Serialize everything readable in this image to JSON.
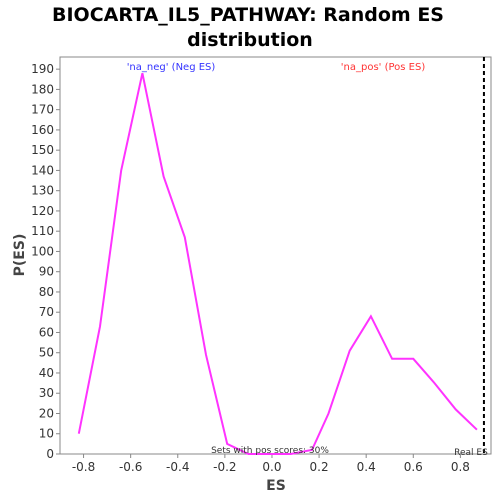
{
  "chart_data": {
    "type": "line",
    "title_line1": "BIOCARTA_IL5_PATHWAY: Random ES",
    "title_line2": "distribution",
    "xlabel": "ES",
    "ylabel": "P(ES)",
    "xlim": [
      -0.9,
      0.93
    ],
    "ylim": [
      0,
      196
    ],
    "xticks": [
      -0.8,
      -0.6,
      -0.4,
      -0.2,
      0.0,
      0.2,
      0.4,
      0.6,
      0.8
    ],
    "xtick_labels": [
      "-0.8",
      "-0.6",
      "-0.4",
      "-0.2",
      "0.0",
      "0.2",
      "0.4",
      "0.6",
      "0.8"
    ],
    "yticks": [
      0,
      10,
      20,
      30,
      40,
      50,
      60,
      70,
      80,
      90,
      100,
      110,
      120,
      130,
      140,
      150,
      160,
      170,
      180,
      190
    ],
    "ytick_labels": [
      "0",
      "10",
      "20",
      "30",
      "40",
      "50",
      "60",
      "70",
      "80",
      "90",
      "100",
      "110",
      "120",
      "130",
      "140",
      "150",
      "160",
      "170",
      "180",
      "190"
    ],
    "series": [
      {
        "color": "#ff33ff",
        "x": [
          -0.82,
          -0.73,
          -0.64,
          -0.55,
          -0.46,
          -0.37,
          -0.28,
          -0.19,
          -0.1,
          -0.01,
          0.08,
          0.17,
          0.24,
          0.33,
          0.42,
          0.51,
          0.6,
          0.69,
          0.78,
          0.87
        ],
        "y": [
          10,
          63,
          140,
          188,
          137,
          107,
          49,
          5,
          0,
          0,
          0,
          2,
          20,
          51,
          68,
          47,
          47,
          35,
          22,
          12
        ]
      }
    ],
    "annotations": {
      "neg_label": "'na_neg' (Neg ES)",
      "pos_label": "'na_pos' (Pos ES)",
      "pos_scores": "Sets with pos scores: 30%",
      "real_es": "Real ES"
    },
    "real_es_x": 0.9,
    "colors": {
      "neg": "#3333ff",
      "pos": "#ff3333",
      "line": "#ff33ff"
    }
  }
}
